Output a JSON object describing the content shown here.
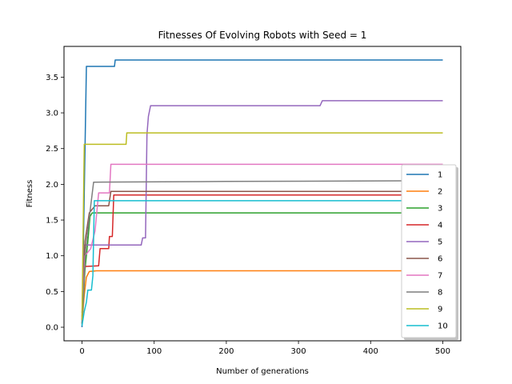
{
  "chart_data": {
    "type": "line",
    "title": "Fitnesses Of Evolving Robots with Seed = 1",
    "xlabel": "Number of generations",
    "ylabel": "Fitness",
    "xlim": [
      -25,
      525
    ],
    "ylim": [
      -0.19,
      3.93
    ],
    "xticks": [
      0,
      100,
      200,
      300,
      400,
      500
    ],
    "yticks": [
      0.0,
      0.5,
      1.0,
      1.5,
      2.0,
      2.5,
      3.0,
      3.5
    ],
    "xtick_labels": [
      "0",
      "100",
      "200",
      "300",
      "400",
      "500"
    ],
    "ytick_labels": [
      "0.0",
      "0.5",
      "1.0",
      "1.5",
      "2.0",
      "2.5",
      "3.0",
      "3.5"
    ],
    "grid": false,
    "legend": "center-right",
    "series": [
      {
        "name": "1",
        "color": "#1f77b4",
        "points": [
          [
            0,
            0
          ],
          [
            6,
            3.65
          ],
          [
            45,
            3.65
          ],
          [
            46,
            3.74
          ],
          [
            500,
            3.74
          ]
        ]
      },
      {
        "name": "2",
        "color": "#ff7f0e",
        "points": [
          [
            0,
            0.05
          ],
          [
            3,
            0.45
          ],
          [
            6,
            0.7
          ],
          [
            10,
            0.78
          ],
          [
            20,
            0.79
          ],
          [
            500,
            0.79
          ]
        ]
      },
      {
        "name": "3",
        "color": "#2ca02c",
        "points": [
          [
            0,
            0.05
          ],
          [
            4,
            0.8
          ],
          [
            8,
            1.2
          ],
          [
            11,
            1.55
          ],
          [
            14,
            1.6
          ],
          [
            500,
            1.6
          ]
        ]
      },
      {
        "name": "4",
        "color": "#d62728",
        "points": [
          [
            0,
            0.1
          ],
          [
            3,
            0.85
          ],
          [
            23,
            0.86
          ],
          [
            25,
            1.1
          ],
          [
            37,
            1.1
          ],
          [
            38,
            1.27
          ],
          [
            42,
            1.27
          ],
          [
            44,
            1.85
          ],
          [
            500,
            1.85
          ]
        ]
      },
      {
        "name": "5",
        "color": "#9467bd",
        "points": [
          [
            0,
            0.2
          ],
          [
            3,
            1.15
          ],
          [
            82,
            1.15
          ],
          [
            84,
            1.25
          ],
          [
            88,
            1.25
          ],
          [
            90,
            2.7
          ],
          [
            92,
            2.95
          ],
          [
            95,
            3.1
          ],
          [
            330,
            3.1
          ],
          [
            333,
            3.17
          ],
          [
            500,
            3.17
          ]
        ]
      },
      {
        "name": "6",
        "color": "#8c564b",
        "points": [
          [
            0,
            0.15
          ],
          [
            4,
            1.2
          ],
          [
            10,
            1.6
          ],
          [
            18,
            1.7
          ],
          [
            37,
            1.7
          ],
          [
            40,
            1.9
          ],
          [
            500,
            1.9
          ]
        ]
      },
      {
        "name": "7",
        "color": "#e377c2",
        "points": [
          [
            0,
            0.1
          ],
          [
            4,
            1.0
          ],
          [
            12,
            1.1
          ],
          [
            18,
            1.35
          ],
          [
            23,
            1.88
          ],
          [
            38,
            1.88
          ],
          [
            40,
            2.28
          ],
          [
            500,
            2.28
          ]
        ]
      },
      {
        "name": "8",
        "color": "#7f7f7f",
        "points": [
          [
            0,
            0.05
          ],
          [
            5,
            1.1
          ],
          [
            12,
            1.7
          ],
          [
            16,
            2.03
          ],
          [
            200,
            2.04
          ],
          [
            500,
            2.05
          ]
        ]
      },
      {
        "name": "9",
        "color": "#bcbd22",
        "points": [
          [
            0,
            0.1
          ],
          [
            3,
            2.56
          ],
          [
            61,
            2.56
          ],
          [
            62,
            2.72
          ],
          [
            500,
            2.72
          ]
        ]
      },
      {
        "name": "10",
        "color": "#17becf",
        "points": [
          [
            0,
            0.02
          ],
          [
            3,
            0.22
          ],
          [
            6,
            0.35
          ],
          [
            8,
            0.52
          ],
          [
            13,
            0.52
          ],
          [
            15,
            0.72
          ],
          [
            17,
            1.77
          ],
          [
            500,
            1.77
          ]
        ]
      }
    ]
  }
}
